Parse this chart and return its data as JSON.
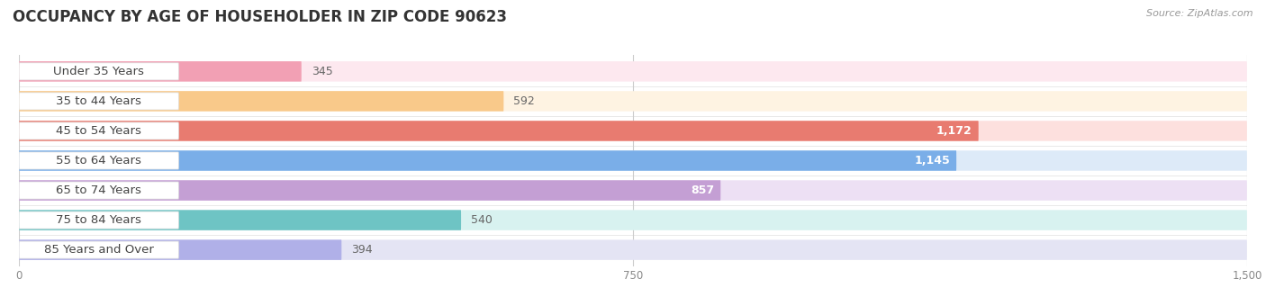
{
  "title": "OCCUPANCY BY AGE OF HOUSEHOLDER IN ZIP CODE 90623",
  "source": "Source: ZipAtlas.com",
  "categories": [
    "Under 35 Years",
    "35 to 44 Years",
    "45 to 54 Years",
    "55 to 64 Years",
    "65 to 74 Years",
    "75 to 84 Years",
    "85 Years and Over"
  ],
  "values": [
    345,
    592,
    1172,
    1145,
    857,
    540,
    394
  ],
  "bar_colors": [
    "#f2a0b4",
    "#f9c98a",
    "#e87b70",
    "#7aaee8",
    "#c49fd4",
    "#6ec4c4",
    "#b0b0e8"
  ],
  "bar_bg_colors": [
    "#fde8ef",
    "#fef3e2",
    "#fde0de",
    "#ddeaf8",
    "#ede0f4",
    "#d8f2f0",
    "#e4e4f4"
  ],
  "row_bg_color": "#f0f0f0",
  "xlim": [
    0,
    1500
  ],
  "xticks": [
    0,
    750,
    1500
  ],
  "title_fontsize": 12,
  "label_fontsize": 9.5,
  "value_fontsize": 9,
  "bg_color": "#ffffff",
  "bar_height": 0.68,
  "label_text_color": "#444444",
  "value_inside_color": "#ffffff",
  "value_outside_color": "#666666",
  "value_threshold": 700
}
